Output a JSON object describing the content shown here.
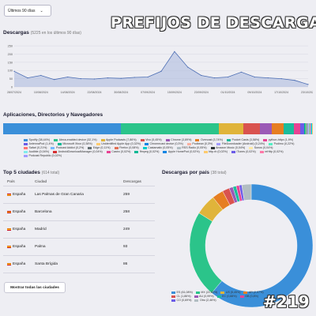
{
  "filter": {
    "range_label": "Últimos 90 días"
  },
  "banner": "PREFIJOS DE DESCARGA",
  "downloads": {
    "title": "Descargas",
    "subtitle": "(5225 en los últimos 90 días)"
  },
  "apps": {
    "title": "Aplicaciones, Directorios y Navegadores"
  },
  "cities": {
    "title": "Top 5 ciudades",
    "subtitle": "(614 total)",
    "headers": [
      "País",
      "Ciudad",
      "Descargas"
    ],
    "rows": [
      {
        "country": "España",
        "city": "Las Palmas de Gran Canaria",
        "downloads": "259"
      },
      {
        "country": "España",
        "city": "Barcelona",
        "downloads": "258"
      },
      {
        "country": "España",
        "city": "Madrid",
        "downloads": "249"
      },
      {
        "country": "España",
        "city": "Palma",
        "downloads": "93"
      },
      {
        "country": "España",
        "city": "Santa Brígida",
        "downloads": "86"
      }
    ],
    "show_all_label": "Mostrar todas las ciudades"
  },
  "countries": {
    "title": "Descargas por país",
    "subtitle": "(38 total)"
  },
  "episode_badge": "#219",
  "chart_data": [
    {
      "type": "area",
      "title": "Descargas",
      "yticks": [
        "0",
        "50",
        "100",
        "150",
        "200",
        "250"
      ],
      "ylim": [
        0,
        260
      ],
      "x": [
        "28/07/2024",
        "01/08/2024",
        "05/08/2024",
        "10/08/2024",
        "14/08/2024",
        "18/08/2024",
        "22/08/2024",
        "26/08/2024",
        "30/08/2024",
        "03/09/2024",
        "07/09/2024",
        "11/09/2024",
        "15/09/2024",
        "19/09/2024",
        "23/09/2024",
        "27/09/2024",
        "01/10/2024",
        "05/10/2024",
        "09/10/2024",
        "13/10/2024",
        "17/10/2024",
        "21/10/2024",
        "23/10/2024"
      ],
      "xticks": [
        "28/07/2024",
        "10/08/2024",
        "14/08/2024",
        "22/08/2024",
        "30/08/2024",
        "07/09/2024",
        "15/09/2024",
        "23/09/2024",
        "01/10/2024",
        "09/10/2024",
        "17/10/2024",
        "23/10/2024"
      ],
      "values": [
        95,
        55,
        70,
        45,
        60,
        50,
        48,
        55,
        52,
        58,
        60,
        95,
        215,
        120,
        70,
        55,
        60,
        90,
        60,
        55,
        50,
        40,
        15
      ],
      "grid": true,
      "color": "#4a6cb3"
    },
    {
      "type": "bar",
      "title": "Aplicaciones, Directorios y Navegadores",
      "stacked": true,
      "segments": [
        {
          "name": "Spotify",
          "value": 38.44,
          "label": "Spotify (38,44%)",
          "color": "#3a8fd9"
        },
        {
          "name": "Alexa-enabled device",
          "value": 32.1,
          "label": "Alexa-enabled device (32,1%)",
          "color": "#2bc48a"
        },
        {
          "name": "Apple Podcasts",
          "value": 7.86,
          "label": "Apple Podcasts (7,86%)",
          "color": "#e0b43a"
        },
        {
          "name": "Vivo",
          "value": 5.45,
          "label": "Vivo (5,45%)",
          "color": "#d9534f"
        },
        {
          "name": "Chrome",
          "value": 3.89,
          "label": "Chrome (3,89%)",
          "color": "#9b59b6"
        },
        {
          "name": "Overcast",
          "value": 3.74,
          "label": "Overcast (3,74%)",
          "color": "#e67e22"
        },
        {
          "name": "Pocket Casts",
          "value": 3.58,
          "label": "Pocket Casts (3,58%)",
          "color": "#1abc9c"
        },
        {
          "name": "python-httpx",
          "value": 1.9,
          "label": "python-httpx (1,9%)",
          "color": "#e84393"
        },
        {
          "name": "AntennaPod",
          "value": 1.4,
          "label": "AntennaPod (1,4%)",
          "color": "#6c5ce7"
        },
        {
          "name": "Microsoft Xbox",
          "value": 0.38,
          "label": "Microsoft Xbox (0,38%)",
          "color": "#00b894"
        },
        {
          "name": "Unidentified Apple App",
          "value": 0.32,
          "label": "Unidentified Apple App (0,32%)",
          "color": "#fdcb6e"
        },
        {
          "name": "Chromecast device",
          "value": 0.3,
          "label": "Chromecast device (0,3%)",
          "color": "#0984e3"
        },
        {
          "name": "Podbean",
          "value": 0.3,
          "label": "Podbean (0,3%)",
          "color": "#fab1a0"
        },
        {
          "name": "FileDownloader (Android)",
          "value": 0.24,
          "label": "FileDownloader (Android) (0,24%)",
          "color": "#a29bfe"
        },
        {
          "name": "Podimo",
          "value": 0.22,
          "label": "Podimo (0,22%)",
          "color": "#55efc4"
        },
        {
          "name": "Safari",
          "value": 0.21,
          "label": "Safari (0,21%)",
          "color": "#ff7675"
        },
        {
          "name": "Podcast Addict",
          "value": 0.2,
          "label": "Podcast Addict (0,2%)",
          "color": "#74b9ff"
        },
        {
          "name": "Edge",
          "value": 0.11,
          "label": "Edge (0,11%)",
          "color": "#636e72"
        },
        {
          "name": "Firefox",
          "value": 0.08,
          "label": "Firefox (0,08%)",
          "color": "#e17055"
        },
        {
          "name": "Castamatic",
          "value": 0.05,
          "label": "Castamatic (0,05%)",
          "color": "#00cec9"
        },
        {
          "name": "RSS Radio",
          "value": 0.05,
          "label": "RSS Radio (0,05%)",
          "color": "#b2bec3"
        },
        {
          "name": "Amazon Music",
          "value": 0.04,
          "label": "Amazon Music (0,04%)",
          "color": "#2d3436"
        },
        {
          "name": "Sonos",
          "value": 0.04,
          "label": "Sonos (0,04%)",
          "color": "#ffeaa7"
        },
        {
          "name": "Audible",
          "value": 0.04,
          "label": "Audible (0,04%)",
          "color": "#81ecec"
        },
        {
          "name": "AndroidDownloadManager",
          "value": 0.04,
          "label": "AndroidDownloadManager (0,04%)",
          "color": "#d63031"
        },
        {
          "name": "Castro",
          "value": 0.02,
          "label": "Castro (0,02%)",
          "color": "#e84393"
        },
        {
          "name": "ffmpeg",
          "value": 0.02,
          "label": "ffmpeg (0,02%)",
          "color": "#00b894"
        },
        {
          "name": "Apple HomePod",
          "value": 0.02,
          "label": "Apple HomePod (0,02%)",
          "color": "#0984e3"
        },
        {
          "name": "http.rb",
          "value": 0.02,
          "label": "http.rb (0,02%)",
          "color": "#fdcb6e"
        },
        {
          "name": "iTunes",
          "value": 0.02,
          "label": "iTunes (0,02%)",
          "color": "#6c5ce7"
        },
        {
          "name": "reHttp",
          "value": 0.02,
          "label": "reHttp (0,02%)",
          "color": "#fd79a8"
        },
        {
          "name": "Podcast Republic",
          "value": 0.02,
          "label": "Podcast Republic (0,02%)",
          "color": "#a29bfe"
        }
      ]
    },
    {
      "type": "pie",
      "title": "Descargas por país",
      "donut": true,
      "slices": [
        {
          "name": "ES",
          "value": 61.08,
          "label": "ES (61,08%)",
          "color": "#3a8fd9"
        },
        {
          "name": "MX",
          "value": 22.82,
          "label": "MX (22,82%)",
          "color": "#2bc48a"
        },
        {
          "name": "US",
          "value": 5.45,
          "label": "US (5,45%)",
          "color": "#e0b43a"
        },
        {
          "name": "AR",
          "value": 2.97,
          "label": "AR (2,97%)",
          "color": "#e67e22"
        },
        {
          "name": "CL",
          "value": 1.86,
          "label": "CL (1,86%)",
          "color": "#d9534f"
        },
        {
          "name": "AU",
          "value": 0.99,
          "label": "AU (0,99%)",
          "color": "#9b59b6"
        },
        {
          "name": "EC",
          "value": 0.88,
          "label": "EC (0,88%)",
          "color": "#1abc9c"
        },
        {
          "name": "GB",
          "value": 0.8,
          "label": "GB (0,8%)",
          "color": "#e84393"
        },
        {
          "name": "CO",
          "value": 0.69,
          "label": "CO (0,69%)",
          "color": "#6c5ce7"
        },
        {
          "name": "Otro",
          "value": 2.46,
          "label": "Otro (2,46%)",
          "color": "#b2bec3"
        }
      ]
    }
  ]
}
